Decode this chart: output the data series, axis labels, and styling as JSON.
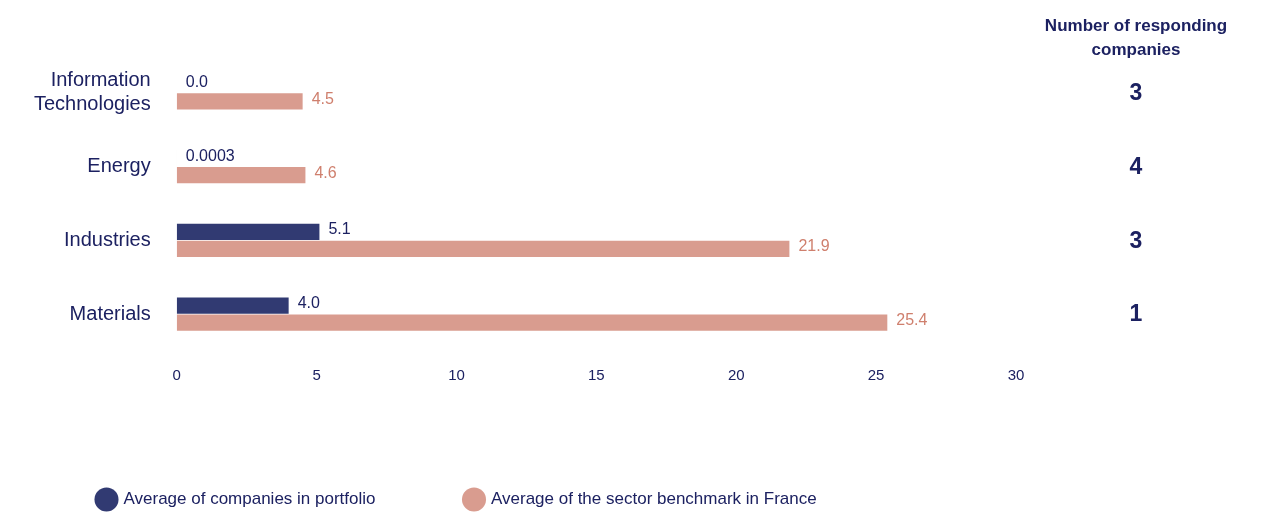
{
  "chart_data": {
    "type": "bar",
    "orientation": "horizontal",
    "categories": [
      "Information Technologies",
      "Energy",
      "Industries",
      "Materials"
    ],
    "series": [
      {
        "name": "Average of companies in portfolio",
        "color": "#313a72",
        "values": [
          0.0,
          0.0003,
          5.1,
          4.0
        ],
        "value_labels": [
          "0.0",
          "0.0003",
          "5.1",
          "4.0"
        ]
      },
      {
        "name": "Average of the sector benchmark in France",
        "color": "#d99c8f",
        "values": [
          4.5,
          4.6,
          21.9,
          25.4
        ],
        "value_labels": [
          "4.5",
          "4.6",
          "21.9",
          "25.4"
        ]
      }
    ],
    "xlim": [
      0,
      30
    ],
    "xticks": [
      0,
      5,
      10,
      15,
      20,
      25,
      30
    ],
    "grid": false,
    "legend": "bottom",
    "annotations": [
      "Number of responding companies",
      "3",
      "4",
      "3",
      "1"
    ]
  }
}
